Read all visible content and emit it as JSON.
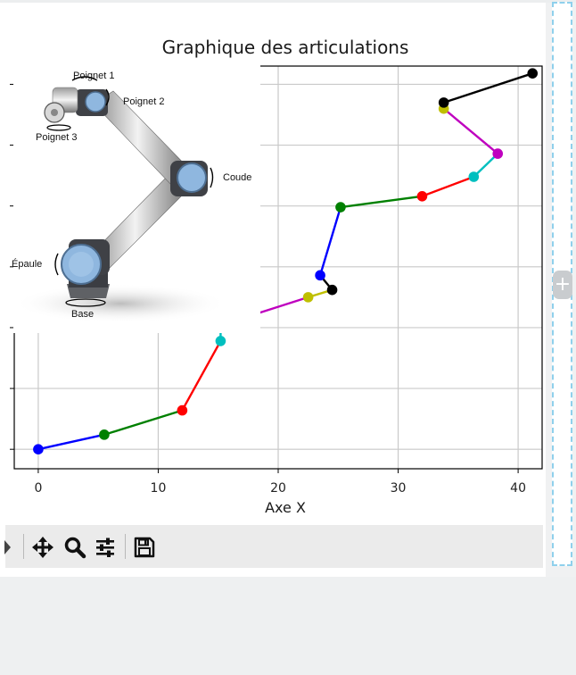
{
  "window": {
    "title": "Graphique des articulations"
  },
  "chart_data": {
    "type": "line",
    "title": "Graphique des articulations",
    "xlabel": "Axe X",
    "ylabel": "",
    "xlim": [
      -2,
      42
    ],
    "ylim": [
      -1.6,
      31.5
    ],
    "xticks": [
      0,
      10,
      20,
      30,
      40
    ],
    "xtick_labels": [
      "0",
      "10",
      "20",
      "30",
      "40"
    ],
    "yticks": [
      0,
      5,
      10,
      15,
      20,
      25,
      30
    ],
    "grid": true,
    "series": [
      {
        "color": "#0000ff",
        "x": [
          0,
          5.5,
          12,
          15.2,
          15.2,
          22.5,
          24.5,
          23.5,
          25.2,
          32,
          36.3,
          38.3,
          33.8,
          33.8,
          41.2
        ],
        "y": [
          0,
          1.2,
          3.2,
          8.9,
          10.2,
          12.5,
          13.1,
          14.3,
          19.9,
          20.8,
          22.4,
          24.3,
          28.0,
          28.5,
          30.9
        ],
        "segment_colors": [
          "#0000ff",
          "#008000",
          "#ff0000",
          "#00bfbf",
          "#bf00bf",
          "#bfbf00",
          "#000000",
          "#0000ff",
          "#008000",
          "#ff0000",
          "#00bfbf",
          "#bf00bf",
          "#bfbf00",
          "#000000"
        ],
        "point_colors": [
          "#0000ff",
          "#008000",
          "#ff0000",
          "#00bfbf",
          "#bf00bf",
          "#bfbf00",
          "#000000",
          "#0000ff",
          "#008000",
          "#ff0000",
          "#00bfbf",
          "#bf00bf",
          "#bfbf00",
          "#000000",
          "#000000"
        ]
      }
    ]
  },
  "overlay": {
    "labels": {
      "poignet1": "Poignet 1",
      "poignet2": "Poignet 2",
      "poignet3": "Poignet 3",
      "coude": "Coude",
      "epaule": "Épaule",
      "base": "Base"
    }
  },
  "toolbar": {
    "icons": [
      "expand-arrow-icon",
      "pan-icon",
      "zoom-icon",
      "configure-subplots-icon",
      "save-icon"
    ]
  },
  "side_panel": {
    "button_label": "+"
  }
}
